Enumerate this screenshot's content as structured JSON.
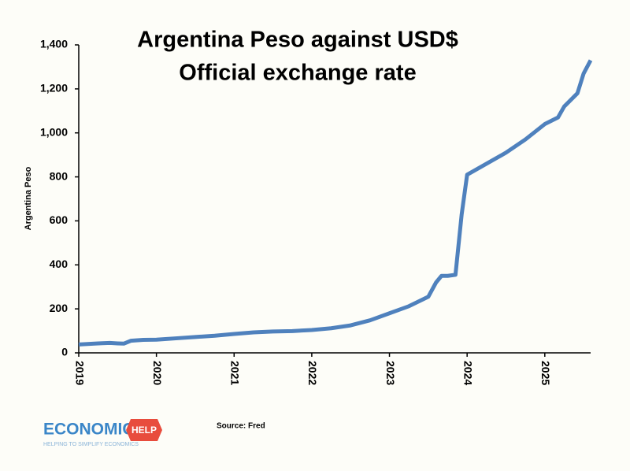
{
  "chart_data": {
    "type": "line",
    "title": "Argentina Peso against USD$",
    "subtitle": "Official exchange rate",
    "ylabel": "Argentina Peso",
    "source": "Source: Fred",
    "x": [
      2019.0,
      2019.25,
      2019.4,
      2019.5,
      2019.58,
      2019.67,
      2019.83,
      2020.0,
      2020.25,
      2020.5,
      2020.75,
      2021.0,
      2021.25,
      2021.5,
      2021.75,
      2022.0,
      2022.25,
      2022.5,
      2022.75,
      2023.0,
      2023.25,
      2023.5,
      2023.6,
      2023.67,
      2023.75,
      2023.85,
      2023.93,
      2024.0,
      2024.25,
      2024.5,
      2024.75,
      2025.0,
      2025.17,
      2025.25,
      2025.42,
      2025.5,
      2025.59
    ],
    "series": [
      {
        "color": "#4f81bd",
        "values": [
          38,
          43,
          45,
          43,
          42,
          55,
          59,
          60,
          66,
          72,
          78,
          86,
          93,
          97,
          99,
          104,
          112,
          125,
          148,
          180,
          212,
          255,
          320,
          350,
          350,
          355,
          630,
          810,
          860,
          910,
          970,
          1040,
          1070,
          1120,
          1180,
          1270,
          1330
        ]
      }
    ],
    "xlim": [
      2019,
      2025.59
    ],
    "xticks": [
      2019,
      2020,
      2021,
      2022,
      2023,
      2024,
      2025
    ],
    "ylim": [
      0,
      1400
    ],
    "yticks": [
      0,
      200,
      400,
      600,
      800,
      {
        "value": 1000,
        "label": "1,000"
      },
      {
        "value": 1200,
        "label": "1,200"
      },
      {
        "value": 1400,
        "label": "1,400"
      }
    ],
    "grid": false
  },
  "logo": {
    "text": "ECONOMICS",
    "badge": "HELP",
    "tagline": "HELPING TO SIMPLIFY ECONOMICS"
  }
}
